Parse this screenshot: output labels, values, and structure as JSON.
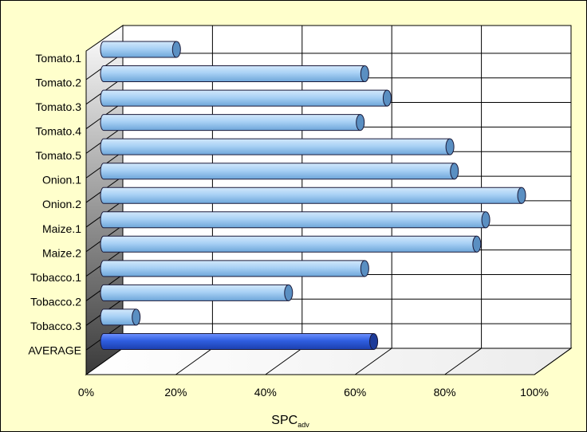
{
  "chart_data": {
    "type": "bar",
    "orientation": "horizontal",
    "style": "3d-cylinder",
    "categories": [
      "Tomato.1",
      "Tomato.2",
      "Tomato.3",
      "Tomato.4",
      "Tomato.5",
      "Onion.1",
      "Onion.2",
      "Maize.1",
      "Maize.2",
      "Tobacco.1",
      "Tobacco.2",
      "Tobacco.3",
      "AVERAGE"
    ],
    "values": [
      0.15,
      0.57,
      0.62,
      0.56,
      0.76,
      0.77,
      0.92,
      0.84,
      0.82,
      0.57,
      0.4,
      0.06,
      0.59
    ],
    "xlim": [
      0,
      1
    ],
    "xticks": [
      "0%",
      "20%",
      "40%",
      "60%",
      "80%",
      "100%"
    ],
    "xlabel": "SPC",
    "xlabel_subscript": "adv",
    "grid": true,
    "colors": {
      "bar": "#a9d1f5",
      "bar_dark": "#5a8fc2",
      "highlight_bar": "#2f5ee0",
      "background": "#ffffcc",
      "wall": "#ffffff"
    }
  }
}
